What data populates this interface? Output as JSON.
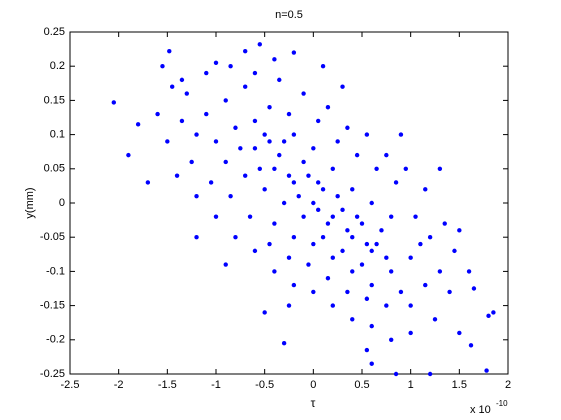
{
  "chart_data": {
    "type": "scatter",
    "title": "n=0.5",
    "x_label": "τ",
    "y_label": "y(mm)",
    "x_exponent": {
      "base": "x 10",
      "power": "-10"
    },
    "color": "#0000ff",
    "xlim": [
      -2.5,
      2
    ],
    "xticks": [
      -2.5,
      -2,
      -1.5,
      -1,
      -0.5,
      0,
      0.5,
      1,
      1.5,
      2
    ],
    "ylim": [
      -0.25,
      0.25
    ],
    "yticks": [
      0.25,
      0.2,
      0.15,
      0.1,
      0.05,
      0,
      -0.05,
      -0.1,
      -0.15,
      -0.2,
      -0.25
    ],
    "x": [
      -0.6,
      -0.4,
      -0.2,
      0,
      0.2,
      0.4,
      0.6,
      -0.5,
      -0.3,
      -0.1,
      0.1,
      0.3,
      0.5,
      0.7,
      -0.7,
      -0.5,
      -0.3,
      -0.1,
      0.1,
      0.3,
      0.5,
      -0.8,
      -0.6,
      -0.2,
      0,
      0.2,
      0.4,
      0.6,
      0.8,
      -0.4,
      -0.2,
      0,
      0.2,
      0.4,
      0.6,
      0.8,
      -0.9,
      -1.0,
      -1.1,
      -1.2,
      1.0,
      1.1,
      0.9,
      1.0,
      -0.9,
      -0.7,
      -0.45,
      -0.25,
      0.05,
      0.25,
      0.45,
      0.65,
      0.85,
      1.05,
      1.2,
      1.3,
      1.15,
      0.75,
      0.55,
      0.35,
      0.15,
      -0.05,
      -0.25,
      -0.45,
      -0.65,
      -0.85,
      -1.05,
      -1.25,
      -1.35,
      -1.3,
      -1.1,
      -0.85,
      -0.6,
      -0.35,
      -0.1,
      0.15,
      0.35,
      0.55,
      0.75,
      0.95,
      1.15,
      1.35,
      1.45,
      1.4,
      1.25,
      1.0,
      0.8,
      0.6,
      0.4,
      0.2,
      0,
      -0.2,
      -0.4,
      -0.6,
      -0.8,
      -1.0,
      -1.2,
      -1.4,
      -1.5,
      -1.45,
      -1.6,
      -2.05,
      -1.8,
      -1.55,
      -1.48,
      -1.35,
      -0.55,
      -0.4,
      -0.7,
      -1.0,
      1.78,
      1.62,
      1.8,
      1.85,
      1.65,
      1.5,
      0.85,
      1.2,
      0.55,
      0.6,
      -0.3,
      -0.5,
      -0.25,
      1.6,
      1.5,
      1.3,
      -1.7,
      -1.9,
      -1.2,
      -0.9,
      0.9,
      0.3,
      0.1,
      -0.2,
      0.05,
      -0.15,
      0.25,
      -0.35,
      0.45,
      -0.05,
      0.15,
      0.35,
      -0.55,
      0.65,
      -0.25,
      0.05,
      -0.45,
      0.55,
      0.75,
      -0.75
    ],
    "values": [
      0.08,
      0.05,
      0.03,
      0,
      -0.02,
      -0.05,
      -0.07,
      0.1,
      0.09,
      0.06,
      0.02,
      -0.01,
      -0.03,
      -0.04,
      0.04,
      0.02,
      0,
      -0.02,
      -0.05,
      -0.07,
      -0.09,
      0.11,
      0.12,
      0.1,
      0.08,
      0.05,
      0.02,
      0,
      -0.02,
      -0.03,
      -0.05,
      -0.06,
      -0.08,
      -0.1,
      -0.12,
      -0.1,
      0.06,
      0.09,
      0.13,
      0.1,
      -0.08,
      -0.06,
      -0.13,
      -0.15,
      0.15,
      0.17,
      0.14,
      0.13,
      0.12,
      0.09,
      0.07,
      0.05,
      0.03,
      -0.02,
      -0.05,
      -0.1,
      -0.12,
      -0.15,
      -0.14,
      -0.13,
      -0.11,
      -0.09,
      -0.08,
      -0.06,
      -0.02,
      0.01,
      0.03,
      0.06,
      0.12,
      0.16,
      0.19,
      0.2,
      0.19,
      0.18,
      0.16,
      0.14,
      0.11,
      0.1,
      0.07,
      0.05,
      0.02,
      -0.03,
      -0.07,
      -0.13,
      -0.17,
      -0.19,
      -0.2,
      -0.18,
      -0.17,
      -0.15,
      -0.13,
      -0.12,
      -0.1,
      -0.07,
      -0.05,
      -0.02,
      0.01,
      0.04,
      0.09,
      0.17,
      0.13,
      0.147,
      0.115,
      0.2,
      0.222,
      0.18,
      0.232,
      0.21,
      0.222,
      0.205,
      -0.245,
      -0.208,
      -0.165,
      -0.16,
      -0.125,
      -0.19,
      -0.25,
      -0.25,
      -0.215,
      -0.235,
      -0.205,
      -0.16,
      -0.15,
      -0.1,
      -0.04,
      0.05,
      0.03,
      0.07,
      -0.05,
      -0.09,
      0.1,
      0.17,
      0.2,
      0.22,
      0.03,
      0.01,
      0.01,
      0.07,
      -0.02,
      0.04,
      -0.03,
      -0.04,
      0.05,
      -0.06,
      0.04,
      -0.01,
      0.09,
      -0.06,
      -0.08,
      0.08
    ]
  }
}
